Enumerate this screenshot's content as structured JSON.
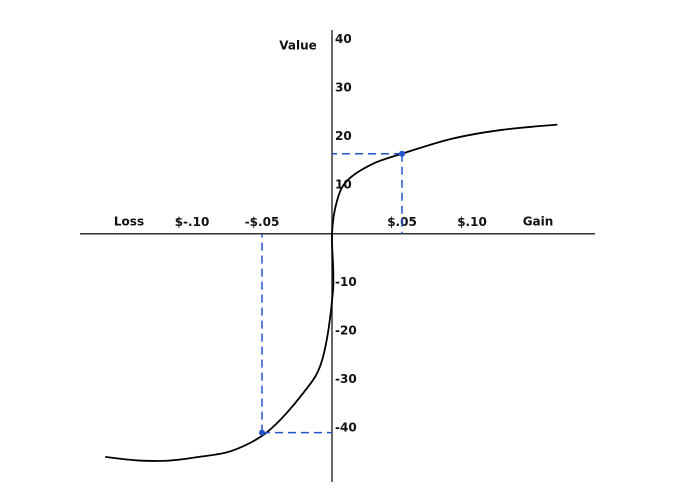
{
  "chart_data": {
    "type": "line",
    "y_label": "Value",
    "loss_label": "Loss",
    "gain_label": "Gain",
    "x": [
      -0.162,
      -0.14,
      -0.118,
      -0.095,
      -0.071,
      -0.046,
      -0.021,
      -0.007,
      0.0007,
      0,
      0.0036,
      0.011,
      0.029,
      0.05,
      0.086,
      0.121,
      0.161
    ],
    "y": [
      -46,
      -46.7,
      -46.8,
      -46,
      -44.7,
      -40.8,
      -33,
      -26,
      -11.8,
      0,
      6.8,
      11,
      14.4,
      16.5,
      19.6,
      21.4,
      22.5
    ],
    "color": "#000000",
    "highlights": [
      {
        "x": 0.05,
        "y": 16.5
      },
      {
        "x": -0.05,
        "y": -41
      }
    ],
    "highlight_color": "#2255cc",
    "xlim": [
      -0.18,
      0.19
    ],
    "ylim": [
      -52,
      42
    ],
    "xticks": [
      {
        "value": -0.1,
        "label": "$-.10"
      },
      {
        "value": -0.05,
        "label": "-$.05"
      },
      {
        "value": 0.05,
        "label": "$.05"
      },
      {
        "value": 0.1,
        "label": "$.10"
      }
    ],
    "yticks": [
      40,
      30,
      20,
      10,
      -10,
      -20,
      -30,
      -40
    ]
  }
}
